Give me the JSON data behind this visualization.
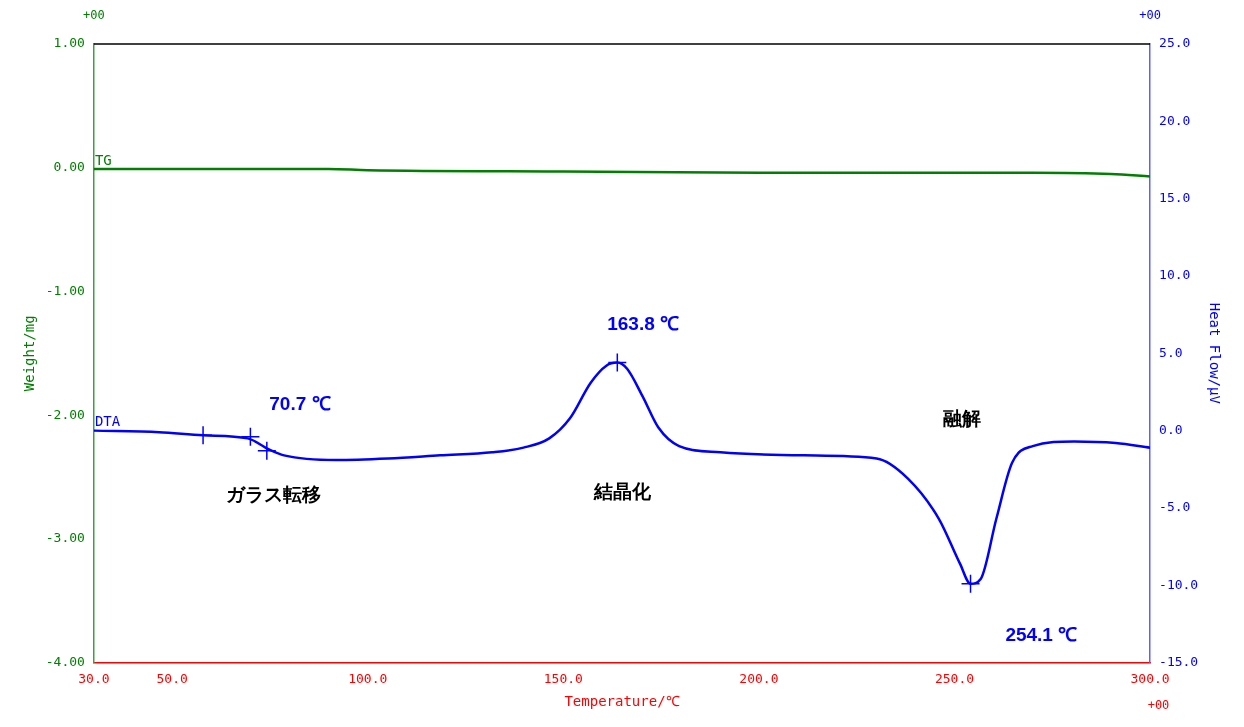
{
  "chart_data": {
    "type": "line",
    "xlabel": "Temperature/℃",
    "ylabel": "Weight/mg",
    "y2label": "Heat Flow/μV",
    "xlim": [
      30,
      300
    ],
    "xticks": [
      {
        "value": 30,
        "label": "30.0"
      },
      {
        "value": 50,
        "label": "50.0"
      },
      {
        "value": 100,
        "label": "100.0"
      },
      {
        "value": 150,
        "label": "150.0"
      },
      {
        "value": 200,
        "label": "200.0"
      },
      {
        "value": 250,
        "label": "250.0"
      },
      {
        "value": 300,
        "label": "300.0"
      }
    ],
    "ylim": [
      -4,
      1
    ],
    "yticks": [
      {
        "value": 1,
        "label": "1.00"
      },
      {
        "value": 0,
        "label": "0.00"
      },
      {
        "value": -1,
        "label": "-1.00"
      },
      {
        "value": -2,
        "label": "-2.00"
      },
      {
        "value": -3,
        "label": "-3.00"
      },
      {
        "value": -4,
        "label": "-4.00"
      }
    ],
    "y2lim": [
      -15,
      25
    ],
    "y2ticks": [
      {
        "value": 25,
        "label": "25.0"
      },
      {
        "value": 20,
        "label": "20.0"
      },
      {
        "value": 15,
        "label": "15.0"
      },
      {
        "value": 10,
        "label": "10.0"
      },
      {
        "value": 5,
        "label": "5.0"
      },
      {
        "value": 0,
        "label": "0.0"
      },
      {
        "value": -5,
        "label": "-5.0"
      },
      {
        "value": -10,
        "label": "-10.0"
      },
      {
        "value": -15,
        "label": "-15.0"
      }
    ],
    "grid": false,
    "legend": false,
    "series": [
      {
        "name": "TG",
        "color": "#007f00",
        "x": [
          30,
          90,
          100,
          150,
          200,
          270,
          290,
          300
        ],
        "values": [
          -0.01,
          -0.01,
          -0.02,
          -0.03,
          -0.04,
          -0.04,
          -0.05,
          -0.07
        ]
      },
      {
        "name": "DTA",
        "color": "#0000ff",
        "axis": "y2",
        "x": [
          30,
          46.7,
          57.9,
          69.3,
          74.6,
          78.6,
          91.9,
          105.2,
          118.5,
          131.8,
          139.8,
          146.4,
          151.7,
          157.0,
          161.0,
          163.8,
          166.3,
          170.3,
          174.3,
          179.6,
          190.2,
          211.5,
          230.1,
          238.1,
          246.0,
          251.4,
          254.1,
          256.7,
          260.7,
          264.7,
          270.0,
          280.6,
          291.2,
          300
        ],
        "values": [
          0.0,
          -0.1,
          -0.3,
          -0.5,
          -1.2,
          -1.6,
          -1.9,
          -1.8,
          -1.6,
          -1.4,
          -1.1,
          -0.5,
          0.8,
          3.1,
          4.2,
          4.4,
          4.0,
          2.2,
          0.2,
          -1.0,
          -1.4,
          -1.6,
          -1.8,
          -3.1,
          -5.7,
          -8.6,
          -9.9,
          -9.6,
          -5.7,
          -2.1,
          -1.0,
          -0.7,
          -0.8,
          -1.1
        ]
      },
      {
        "type": "scatter",
        "marker": "cross",
        "color": "#0000ff",
        "axis": "y2",
        "x": [
          57.9,
          70.0,
          74.2,
          163.8,
          254.1
        ],
        "values": [
          -0.3,
          -0.4,
          -1.3,
          4.4,
          -9.9
        ]
      }
    ],
    "annotations": [
      "70.7 ℃",
      "163.8 ℃",
      "254.1 ℃",
      "ガラス転移",
      "結晶化",
      "融解",
      "+00",
      "+00",
      "+00"
    ]
  }
}
